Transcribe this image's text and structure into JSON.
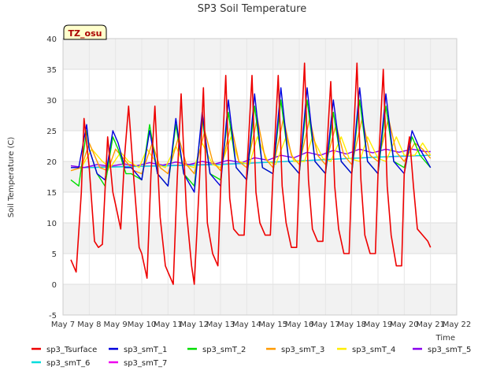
{
  "chart_data": {
    "type": "line",
    "title": "SP3 Soil Temperature",
    "xlabel": "Time",
    "ylabel": "Soil Temperature (C)",
    "timezone_badge": "TZ_osu",
    "xlim": [
      7,
      22
    ],
    "ylim": [
      -5,
      40
    ],
    "yticks": [
      -5,
      0,
      5,
      10,
      15,
      20,
      25,
      30,
      35,
      40
    ],
    "xticks": [
      {
        "value": 7,
        "label": "May 7"
      },
      {
        "value": 8,
        "label": "May 8"
      },
      {
        "value": 9,
        "label": "May 9"
      },
      {
        "value": 10,
        "label": "May 10"
      },
      {
        "value": 11,
        "label": "May 11"
      },
      {
        "value": 12,
        "label": "May 12"
      },
      {
        "value": 13,
        "label": "May 13"
      },
      {
        "value": 14,
        "label": "May 14"
      },
      {
        "value": 15,
        "label": "May 15"
      },
      {
        "value": 16,
        "label": "May 16"
      },
      {
        "value": 17,
        "label": "May 17"
      },
      {
        "value": 18,
        "label": "May 18"
      },
      {
        "value": 19,
        "label": "May 19"
      },
      {
        "value": 20,
        "label": "May 20"
      },
      {
        "value": 21,
        "label": "May 21"
      },
      {
        "value": 22,
        "label": "May 22"
      }
    ],
    "series": [
      {
        "name": "sp3_Tsurface",
        "color": "#ee0000",
        "x": [
          7.3,
          7.5,
          7.7,
          7.8,
          8.0,
          8.2,
          8.35,
          8.5,
          8.7,
          8.9,
          9.0,
          9.2,
          9.35,
          9.5,
          9.7,
          9.9,
          10.0,
          10.2,
          10.35,
          10.5,
          10.7,
          10.9,
          11.0,
          11.2,
          11.35,
          11.5,
          11.7,
          11.9,
          12.0,
          12.2,
          12.35,
          12.5,
          12.7,
          12.9,
          13.0,
          13.2,
          13.35,
          13.5,
          13.7,
          13.9,
          14.0,
          14.2,
          14.35,
          14.5,
          14.7,
          14.9,
          15.0,
          15.2,
          15.35,
          15.5,
          15.7,
          15.9,
          16.0,
          16.2,
          16.35,
          16.5,
          16.7,
          16.9,
          17.0,
          17.2,
          17.35,
          17.5,
          17.7,
          17.9,
          18.0,
          18.2,
          18.35,
          18.5,
          18.7,
          18.9,
          19.0,
          19.2,
          19.35,
          19.5,
          19.7,
          19.9,
          20.0,
          20.2,
          20.35,
          20.5,
          20.7,
          20.9,
          21.0
        ],
        "y": [
          4,
          2,
          15,
          27,
          19,
          7,
          6,
          6.5,
          24,
          15,
          13,
          9,
          21,
          29,
          17,
          6,
          5,
          1,
          18,
          29,
          11,
          3,
          2,
          0,
          17,
          31,
          12,
          3,
          0,
          17,
          32,
          10,
          5,
          3,
          15,
          34,
          14,
          9,
          8,
          8,
          18,
          34,
          15,
          10,
          8,
          8,
          18,
          34,
          16,
          10,
          6,
          6,
          18,
          36,
          17,
          9,
          7,
          7,
          18,
          33,
          16,
          9,
          5,
          5,
          18,
          36,
          17,
          8,
          5,
          5,
          18,
          35,
          16,
          8,
          3,
          3,
          18,
          24,
          16,
          9,
          8,
          7,
          6
        ]
      },
      {
        "name": "sp3_smT_1",
        "color": "#0000dd",
        "x": [
          7.3,
          7.6,
          7.9,
          8.0,
          8.3,
          8.6,
          8.9,
          9.1,
          9.35,
          9.6,
          10.0,
          10.3,
          10.6,
          11.0,
          11.3,
          11.6,
          12.0,
          12.3,
          12.6,
          13.0,
          13.3,
          13.6,
          14.0,
          14.3,
          14.6,
          15.0,
          15.3,
          15.6,
          16.0,
          16.3,
          16.6,
          17.0,
          17.3,
          17.6,
          18.0,
          18.3,
          18.6,
          19.0,
          19.3,
          19.6,
          20.0,
          20.3,
          20.6,
          21.0
        ],
        "y": [
          19,
          19,
          26,
          22,
          18,
          17,
          25,
          23,
          19,
          19,
          17,
          25,
          18,
          16,
          27,
          18,
          15,
          28,
          18,
          16,
          30,
          19,
          17,
          31,
          19,
          18,
          32,
          20,
          18,
          32,
          20,
          18,
          30,
          20,
          18,
          32,
          20,
          18,
          31,
          20,
          18,
          25,
          22,
          19
        ]
      },
      {
        "name": "sp3_smT_2",
        "color": "#00dd00",
        "x": [
          7.3,
          7.6,
          7.9,
          8.0,
          8.3,
          8.6,
          8.9,
          9.1,
          9.4,
          9.6,
          10.0,
          10.3,
          10.6,
          11.0,
          11.3,
          11.6,
          12.0,
          12.3,
          12.6,
          13.0,
          13.3,
          13.6,
          14.0,
          14.3,
          14.6,
          15.0,
          15.3,
          15.6,
          16.0,
          16.3,
          16.6,
          17.0,
          17.3,
          17.6,
          18.0,
          18.3,
          18.6,
          19.0,
          19.3,
          19.6,
          20.0,
          20.3,
          20.6,
          21.0
        ],
        "y": [
          17,
          16,
          25,
          22,
          18,
          16,
          24,
          22,
          18,
          18,
          17,
          26,
          18,
          16,
          26,
          18,
          16,
          27,
          18,
          17,
          28,
          19,
          17,
          29,
          19,
          18,
          30,
          20,
          18,
          30,
          20,
          18,
          28,
          20,
          18,
          30,
          20,
          18,
          29,
          20,
          19,
          24,
          21,
          19
        ]
      },
      {
        "name": "sp3_smT_3",
        "color": "#ff9900",
        "x": [
          7.3,
          7.7,
          8.0,
          8.4,
          8.7,
          9.0,
          9.4,
          9.7,
          10.0,
          10.4,
          10.7,
          11.0,
          11.4,
          11.7,
          12.0,
          12.4,
          12.7,
          13.0,
          13.4,
          13.7,
          14.0,
          14.4,
          14.7,
          15.0,
          15.4,
          15.7,
          16.0,
          16.4,
          16.7,
          17.0,
          17.4,
          17.7,
          18.0,
          18.4,
          18.7,
          19.0,
          19.4,
          19.7,
          20.0,
          20.4,
          20.7,
          21.0
        ],
        "y": [
          18.5,
          19,
          23,
          19,
          18.5,
          22,
          20,
          18.5,
          18,
          23,
          19,
          18,
          24,
          19.5,
          18,
          25,
          20,
          18.5,
          26,
          20,
          19,
          27,
          20.5,
          19,
          27,
          21,
          19.5,
          27,
          21,
          19.5,
          26,
          21,
          19.5,
          27,
          21,
          20,
          27,
          21.5,
          20,
          23,
          22,
          20.5
        ]
      },
      {
        "name": "sp3_smT_4",
        "color": "#ffee00",
        "x": [
          7.3,
          7.7,
          8.1,
          8.5,
          8.8,
          9.2,
          9.5,
          9.9,
          10.2,
          10.6,
          10.9,
          11.3,
          11.6,
          12.0,
          12.3,
          12.7,
          13.0,
          13.4,
          13.7,
          14.1,
          14.4,
          14.8,
          15.1,
          15.5,
          15.8,
          16.2,
          16.5,
          16.9,
          17.2,
          17.6,
          17.9,
          18.3,
          18.6,
          19.0,
          19.3,
          19.7,
          20.0,
          20.4,
          20.7,
          21.0
        ],
        "y": [
          19,
          19,
          22,
          20,
          19,
          21.5,
          20,
          19,
          22,
          19.5,
          19,
          22.5,
          19.5,
          19,
          23,
          19.5,
          19,
          24,
          20,
          19.5,
          24,
          20,
          19.5,
          24,
          20,
          20,
          24,
          20.5,
          20,
          24,
          20.5,
          20,
          24,
          20.5,
          20,
          24,
          21,
          21,
          23,
          21
        ]
      },
      {
        "name": "sp3_smT_5",
        "color": "#8800ee",
        "x": [
          7.3,
          7.8,
          8.3,
          8.8,
          9.3,
          9.8,
          10.3,
          10.8,
          11.3,
          11.8,
          12.3,
          12.8,
          13.3,
          13.8,
          14.3,
          14.8,
          15.3,
          15.8,
          16.3,
          16.8,
          17.3,
          17.8,
          18.3,
          18.8,
          19.3,
          19.8,
          20.3,
          20.8,
          21.0
        ],
        "y": [
          19.3,
          19,
          19.5,
          19.2,
          19.6,
          19.3,
          19.8,
          19.4,
          19.9,
          19.5,
          20,
          19.6,
          20.2,
          19.8,
          20.6,
          20.2,
          21,
          20.6,
          21.5,
          21,
          21.8,
          21.2,
          22,
          21.4,
          22,
          21.5,
          22,
          21.6,
          21.6
        ]
      },
      {
        "name": "sp3_smT_6",
        "color": "#00dddd",
        "x": [
          7.3,
          8.0,
          9.0,
          10.0,
          11.0,
          12.0,
          13.0,
          14.0,
          15.0,
          16.0,
          17.0,
          18.0,
          19.0,
          20.0,
          21.0
        ],
        "y": [
          19,
          19,
          19.1,
          19.2,
          19.3,
          19.4,
          19.5,
          19.7,
          19.9,
          20.1,
          20.3,
          20.5,
          20.7,
          20.9,
          21
        ]
      },
      {
        "name": "sp3_smT_7",
        "color": "#ee00ee",
        "x": [
          7.3,
          8.0,
          9.0,
          10.0,
          11.0,
          12.0,
          13.0,
          14.0,
          15.0,
          16.0,
          17.0,
          18.0,
          19.0,
          20.0,
          21.0
        ],
        "y": [
          19,
          19.05,
          19.15,
          19.25,
          19.35,
          19.45,
          19.55,
          19.7,
          19.9,
          20.1,
          20.3,
          20.5,
          20.7,
          20.85,
          21
        ]
      }
    ]
  }
}
